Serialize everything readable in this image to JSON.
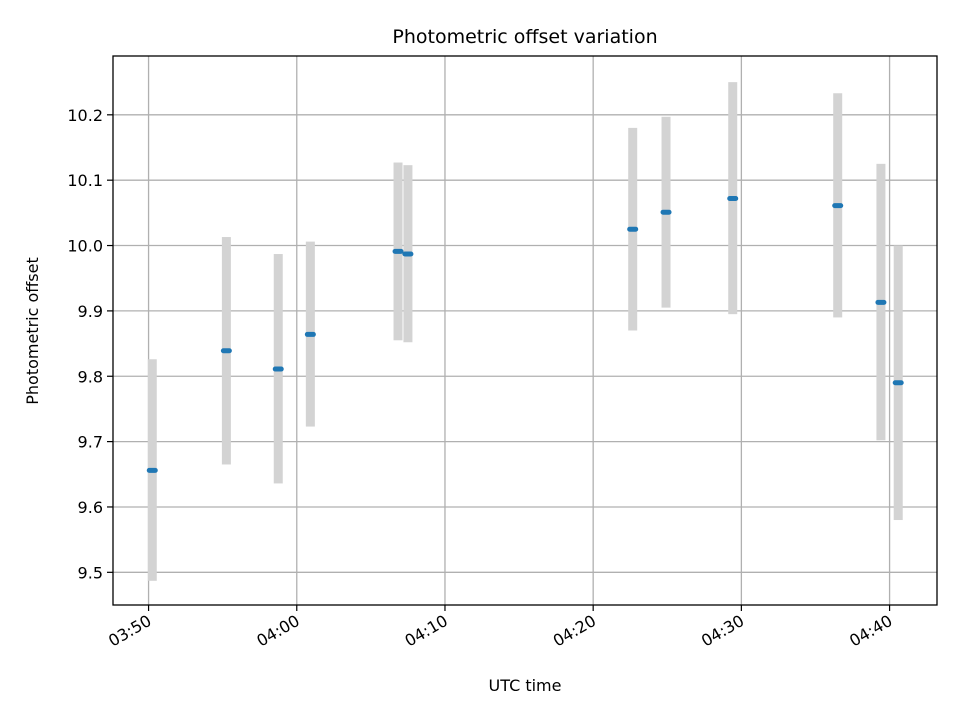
{
  "chart_data": {
    "type": "scatter",
    "title": "Photometric offset variation",
    "xlabel": "UTC time",
    "ylabel": "Photometric offset",
    "x_ticks": [
      "03:50",
      "04:00",
      "04:10",
      "04:20",
      "04:30",
      "04:40"
    ],
    "y_ticks": [
      "9.5",
      "9.6",
      "9.7",
      "9.8",
      "9.9",
      "10.0",
      "10.1",
      "10.2"
    ],
    "x_range": [
      "03:47:36",
      "04:43:12"
    ],
    "ylim": [
      9.45,
      10.29
    ],
    "grid": true,
    "colors": {
      "marker": "#1f77b4",
      "errorbar": "#d3d3d3",
      "grid": "#b0b0b0"
    },
    "points": [
      {
        "x": "03:50:15",
        "y": 9.656,
        "y_low": 9.487,
        "y_high": 9.826
      },
      {
        "x": "03:55:15",
        "y": 9.839,
        "y_low": 9.665,
        "y_high": 10.013
      },
      {
        "x": "03:58:45",
        "y": 9.811,
        "y_low": 9.636,
        "y_high": 9.987
      },
      {
        "x": "04:00:55",
        "y": 9.864,
        "y_low": 9.723,
        "y_high": 10.006
      },
      {
        "x": "04:06:50",
        "y": 9.991,
        "y_low": 9.855,
        "y_high": 10.127
      },
      {
        "x": "04:07:30",
        "y": 9.987,
        "y_low": 9.852,
        "y_high": 10.123
      },
      {
        "x": "04:22:40",
        "y": 10.025,
        "y_low": 9.87,
        "y_high": 10.18
      },
      {
        "x": "04:24:55",
        "y": 10.051,
        "y_low": 9.905,
        "y_high": 10.197
      },
      {
        "x": "04:29:25",
        "y": 10.072,
        "y_low": 9.895,
        "y_high": 10.25
      },
      {
        "x": "04:36:30",
        "y": 10.061,
        "y_low": 9.89,
        "y_high": 10.233
      },
      {
        "x": "04:39:25",
        "y": 9.913,
        "y_low": 9.702,
        "y_high": 10.125
      },
      {
        "x": "04:40:35",
        "y": 9.79,
        "y_low": 9.58,
        "y_high": 10.0
      }
    ]
  }
}
